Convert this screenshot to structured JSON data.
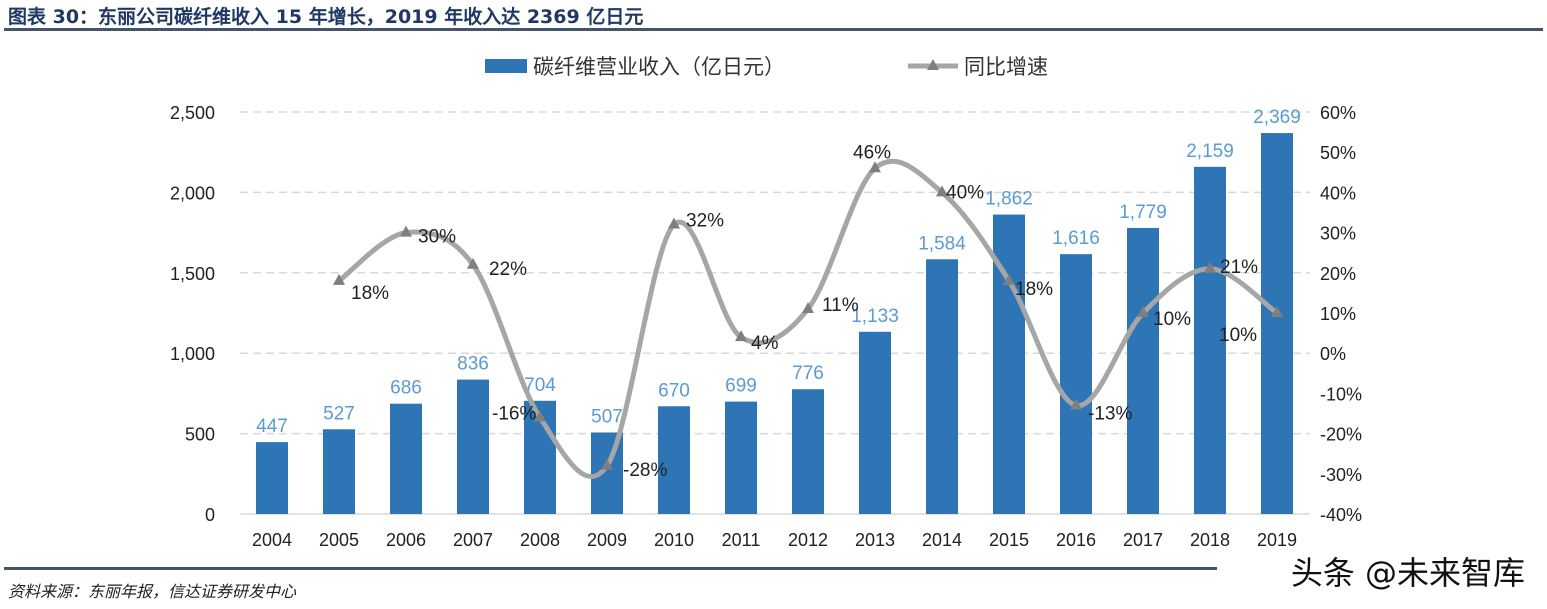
{
  "title": "图表 30：东丽公司碳纤维收入 15 年增长，2019 年收入达 2369 亿日元",
  "source": "资料来源：东丽年报，信达证券研发中心",
  "watermark": "头条 @未来智库",
  "chart_data": {
    "type": "bar+line",
    "categories": [
      "2004",
      "2005",
      "2006",
      "2007",
      "2008",
      "2009",
      "2010",
      "2011",
      "2012",
      "2013",
      "2014",
      "2015",
      "2016",
      "2017",
      "2018",
      "2019"
    ],
    "series": [
      {
        "name": "碳纤维营业收入（亿日元）",
        "type": "bar",
        "axis": "left",
        "color": "#2E75B6",
        "label_color": "#5B9BD5",
        "values": [
          447,
          527,
          686,
          836,
          704,
          507,
          670,
          699,
          776,
          1133,
          1584,
          1862,
          1616,
          1779,
          2159,
          2369
        ],
        "labels": [
          "447",
          "527",
          "686",
          "836",
          "704",
          "507",
          "670",
          "699",
          "776",
          "1,133",
          "1,584",
          "1,862",
          "1,616",
          "1,779",
          "2,159",
          "2,369"
        ]
      },
      {
        "name": "同比增速",
        "type": "line",
        "axis": "right",
        "smooth": true,
        "color": "#A6A6A6",
        "marker": "triangle",
        "marker_color": "#7F7F7F",
        "values": [
          null,
          18,
          30,
          22,
          -16,
          -28,
          32,
          4,
          11,
          46,
          40,
          18,
          -13,
          10,
          21,
          10
        ],
        "labels": [
          "",
          "18%",
          "30%",
          "22%",
          "-16%",
          "-28%",
          "32%",
          "4%",
          "11%",
          "46%",
          "40%",
          "18%",
          "-13%",
          "10%",
          "21%",
          "10%"
        ]
      }
    ],
    "y_left": {
      "range": [
        0,
        2500
      ],
      "ticks": [
        "0",
        "500",
        "1,000",
        "1,500",
        "2,000",
        "2,500"
      ],
      "tick_values": [
        0,
        500,
        1000,
        1500,
        2000,
        2500
      ]
    },
    "y_right": {
      "range": [
        -40,
        60
      ],
      "ticks": [
        "-40%",
        "-30%",
        "-20%",
        "-10%",
        "0%",
        "10%",
        "20%",
        "30%",
        "40%",
        "50%",
        "60%"
      ],
      "tick_values": [
        -40,
        -30,
        -20,
        -10,
        0,
        10,
        20,
        30,
        40,
        50,
        60
      ]
    },
    "grid": "horizontal dashed",
    "legend": "top"
  }
}
